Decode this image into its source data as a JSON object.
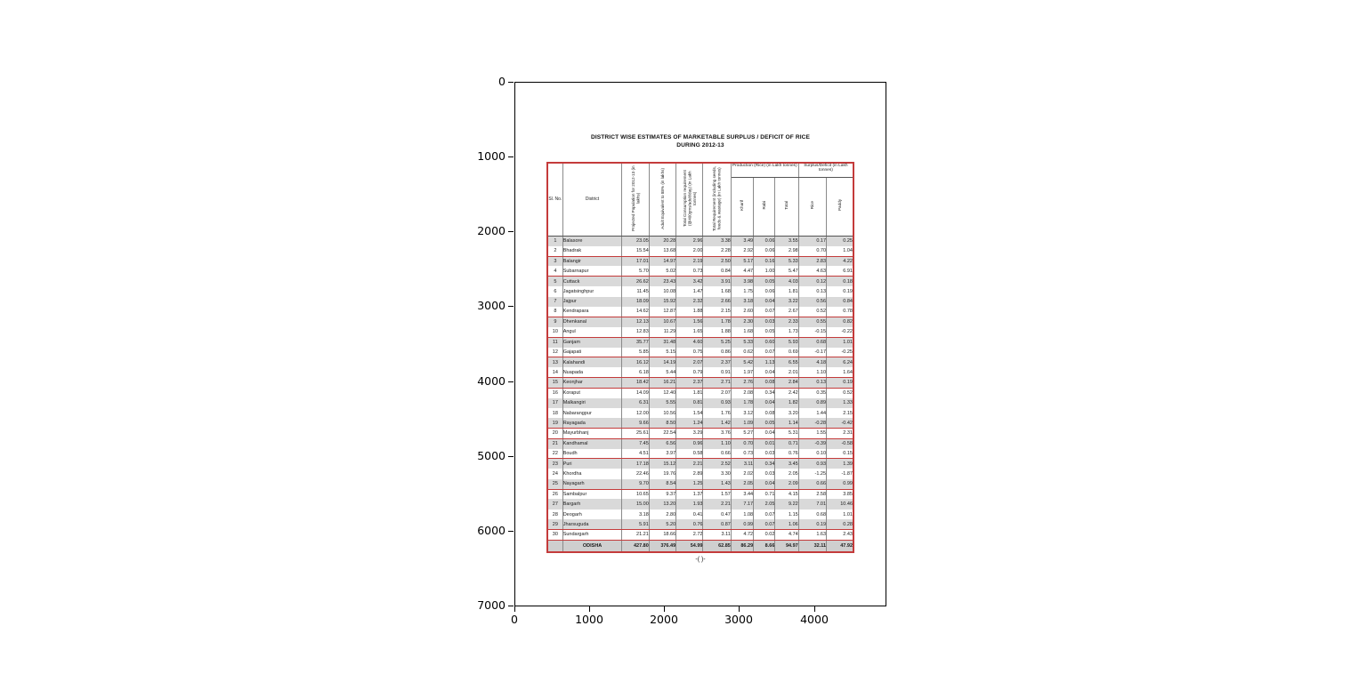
{
  "figure": {
    "x_ticks": [
      "0",
      "1000",
      "2000",
      "3000",
      "4000"
    ],
    "y_ticks": [
      "0",
      "1000",
      "2000",
      "3000",
      "4000",
      "5000",
      "6000",
      "7000"
    ]
  },
  "doc": {
    "title_line1": "DISTRICT WISE ESTIMATES OF MARKETABLE SURPLUS / DEFICIT OF RICE",
    "title_line2": "DURING 2012-13",
    "footer_mark": "-(  )-"
  },
  "table": {
    "accent_border_color": "#c43b3b",
    "columns": {
      "sl": "Sl. No.",
      "district": "District",
      "rotated": [
        "Projected Population for 2012-13 (in lakhs)",
        "Adult Equivalent to 88% (in lakhs)",
        "Total Consumption requirement (@400gms/adult/day) (in Lakh tonnes)",
        "Total Requirement (including seeds, feeds & wastage) (in Lakh tonnes)"
      ],
      "production_group": "Production (Rice) (in Lakh tonnes)",
      "production_sub": [
        "Kharif",
        "Rabi",
        "Total"
      ],
      "surplus_group": "Surplus/Deficit (in Lakh tonnes)",
      "surplus_sub": [
        "Rice",
        "Paddy"
      ]
    },
    "group_breaks": [
      2,
      4,
      8,
      10,
      12,
      14,
      15,
      19,
      20,
      22,
      25,
      29,
      30
    ],
    "rows": [
      [
        "1",
        "Balasore",
        "23.05",
        "20.28",
        "2.96",
        "3.38",
        "3.49",
        "0.06",
        "3.55",
        "0.17",
        "0.25"
      ],
      [
        "2",
        "Bhadrak",
        "15.54",
        "13.68",
        "2.00",
        "2.28",
        "2.92",
        "0.06",
        "2.98",
        "0.70",
        "1.04"
      ],
      [
        "3",
        "Balangir",
        "17.01",
        "14.97",
        "2.19",
        "2.50",
        "5.17",
        "0.16",
        "5.33",
        "2.83",
        "4.22"
      ],
      [
        "4",
        "Subarnapur",
        "5.70",
        "5.02",
        "0.73",
        "0.84",
        "4.47",
        "1.00",
        "5.47",
        "4.63",
        "6.91"
      ],
      [
        "5",
        "Cuttack",
        "26.62",
        "23.43",
        "3.42",
        "3.91",
        "3.98",
        "0.05",
        "4.03",
        "0.12",
        "0.18"
      ],
      [
        "6",
        "Jagatsinghpur",
        "11.45",
        "10.08",
        "1.47",
        "1.68",
        "1.75",
        "0.06",
        "1.81",
        "0.13",
        "0.19"
      ],
      [
        "7",
        "Jajpur",
        "18.09",
        "15.92",
        "2.32",
        "2.66",
        "3.18",
        "0.04",
        "3.22",
        "0.56",
        "0.84"
      ],
      [
        "8",
        "Kendrapara",
        "14.62",
        "12.87",
        "1.88",
        "2.15",
        "2.60",
        "0.07",
        "2.67",
        "0.52",
        "0.78"
      ],
      [
        "9",
        "Dhenkanal",
        "12.13",
        "10.67",
        "1.56",
        "1.78",
        "2.30",
        "0.03",
        "2.33",
        "0.55",
        "0.82"
      ],
      [
        "10",
        "Angul",
        "12.83",
        "11.29",
        "1.65",
        "1.88",
        "1.68",
        "0.05",
        "1.73",
        "-0.15",
        "-0.22"
      ],
      [
        "11",
        "Ganjam",
        "35.77",
        "31.48",
        "4.60",
        "5.25",
        "5.33",
        "0.60",
        "5.93",
        "0.68",
        "1.01"
      ],
      [
        "12",
        "Gajapati",
        "5.85",
        "5.15",
        "0.75",
        "0.86",
        "0.62",
        "0.07",
        "0.69",
        "-0.17",
        "-0.25"
      ],
      [
        "13",
        "Kalahandi",
        "16.12",
        "14.19",
        "2.07",
        "2.37",
        "5.42",
        "1.13",
        "6.55",
        "4.18",
        "6.24"
      ],
      [
        "14",
        "Nuapada",
        "6.18",
        "5.44",
        "0.79",
        "0.91",
        "1.97",
        "0.04",
        "2.01",
        "1.10",
        "1.64"
      ],
      [
        "15",
        "Keonjhar",
        "18.42",
        "16.21",
        "2.37",
        "2.71",
        "2.76",
        "0.08",
        "2.84",
        "0.13",
        "0.19"
      ],
      [
        "16",
        "Koraput",
        "14.09",
        "12.40",
        "1.81",
        "2.07",
        "2.08",
        "0.34",
        "2.42",
        "0.35",
        "0.52"
      ],
      [
        "17",
        "Malkangiri",
        "6.31",
        "5.55",
        "0.81",
        "0.93",
        "1.78",
        "0.04",
        "1.82",
        "0.89",
        "1.33"
      ],
      [
        "18",
        "Nabarangpur",
        "12.00",
        "10.56",
        "1.54",
        "1.76",
        "3.12",
        "0.08",
        "3.20",
        "1.44",
        "2.15"
      ],
      [
        "19",
        "Rayagada",
        "9.66",
        "8.50",
        "1.24",
        "1.42",
        "1.09",
        "0.05",
        "1.14",
        "-0.28",
        "-0.42"
      ],
      [
        "20",
        "Mayurbhanj",
        "25.61",
        "22.54",
        "3.29",
        "3.76",
        "5.27",
        "0.04",
        "5.31",
        "1.55",
        "2.31"
      ],
      [
        "21",
        "Kandhamal",
        "7.45",
        "6.56",
        "0.96",
        "1.10",
        "0.70",
        "0.01",
        "0.71",
        "-0.39",
        "-0.58"
      ],
      [
        "22",
        "Boudh",
        "4.51",
        "3.97",
        "0.58",
        "0.66",
        "0.73",
        "0.03",
        "0.76",
        "0.10",
        "0.15"
      ],
      [
        "23",
        "Puri",
        "17.18",
        "15.12",
        "2.21",
        "2.52",
        "3.11",
        "0.34",
        "3.45",
        "0.93",
        "1.39"
      ],
      [
        "24",
        "Khordha",
        "22.46",
        "19.76",
        "2.89",
        "3.30",
        "2.02",
        "0.03",
        "2.05",
        "-1.25",
        "-1.87"
      ],
      [
        "25",
        "Nayagarh",
        "9.70",
        "8.54",
        "1.25",
        "1.43",
        "2.05",
        "0.04",
        "2.09",
        "0.66",
        "0.99"
      ],
      [
        "26",
        "Sambalpur",
        "10.65",
        "9.37",
        "1.37",
        "1.57",
        "3.44",
        "0.71",
        "4.15",
        "2.58",
        "3.85"
      ],
      [
        "27",
        "Bargarh",
        "15.00",
        "13.20",
        "1.93",
        "2.21",
        "7.17",
        "2.05",
        "9.22",
        "7.01",
        "10.46"
      ],
      [
        "28",
        "Deogarh",
        "3.18",
        "2.80",
        "0.41",
        "0.47",
        "1.08",
        "0.07",
        "1.15",
        "0.68",
        "1.01"
      ],
      [
        "29",
        "Jharsuguda",
        "5.91",
        "5.20",
        "0.76",
        "0.87",
        "0.99",
        "0.07",
        "1.06",
        "0.19",
        "0.28"
      ],
      [
        "30",
        "Sundargarh",
        "21.21",
        "18.66",
        "2.72",
        "3.11",
        "4.72",
        "0.02",
        "4.74",
        "1.63",
        "2.43"
      ]
    ],
    "total_row": [
      "",
      "ODISHA",
      "427.80",
      "376.49",
      "54.99",
      "62.85",
      "86.29",
      "8.66",
      "94.97",
      "32.11",
      "47.92"
    ]
  }
}
